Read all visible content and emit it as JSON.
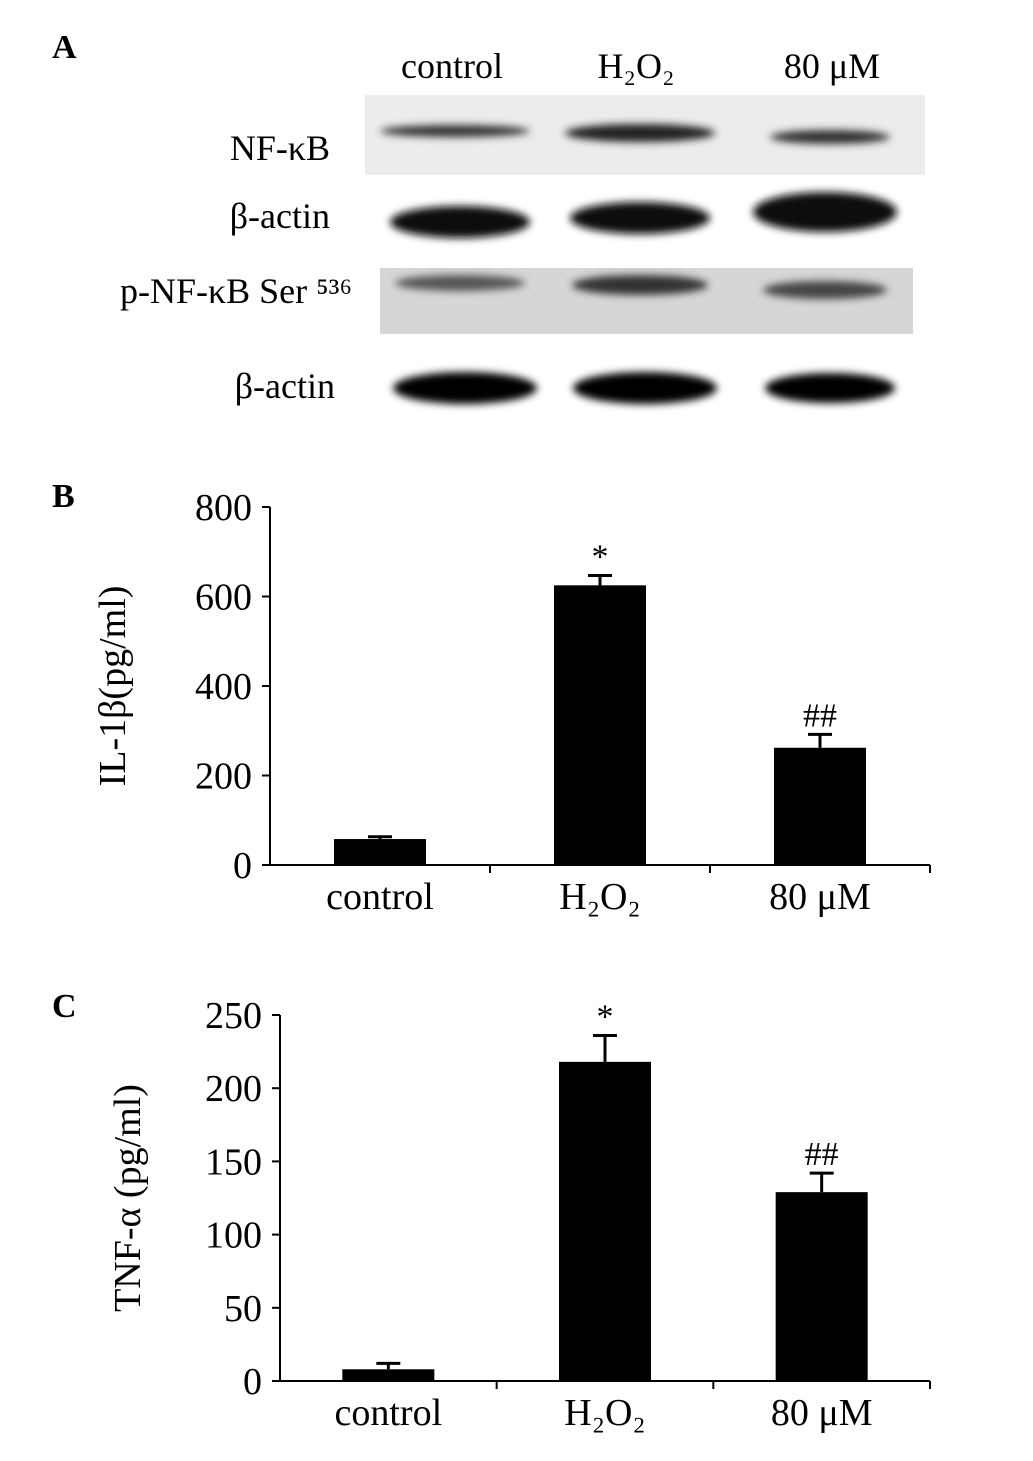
{
  "blot": {
    "panel": "A",
    "lanes": [
      "control",
      "H₂O₂",
      "80 μM"
    ],
    "rows": [
      "NF-κB",
      "β-actin",
      "p-NF-κB Ser ⁵³⁶",
      "β-actin"
    ]
  },
  "chart_data": [
    {
      "type": "bar",
      "panel": "B",
      "y_label": "IL-1β(pg/ml)",
      "categories": [
        "control",
        "H₂O₂",
        "80 μM"
      ],
      "values": [
        58,
        625,
        262
      ],
      "errors": [
        5,
        22,
        30
      ],
      "annotations": [
        null,
        "*",
        "##"
      ],
      "color": "#000000",
      "ylim": [
        0,
        800
      ],
      "yticks": [
        0,
        200,
        400,
        600,
        800
      ]
    },
    {
      "type": "bar",
      "panel": "C",
      "y_label": "TNF-α (pg/ml)",
      "categories": [
        "control",
        "H₂O₂",
        "80 μM"
      ],
      "values": [
        8,
        218,
        129
      ],
      "errors": [
        4,
        18,
        13
      ],
      "annotations": [
        null,
        "*",
        "##"
      ],
      "color": "#000000",
      "ylim": [
        0,
        250
      ],
      "yticks": [
        0,
        50,
        100,
        150,
        200,
        250
      ]
    }
  ]
}
